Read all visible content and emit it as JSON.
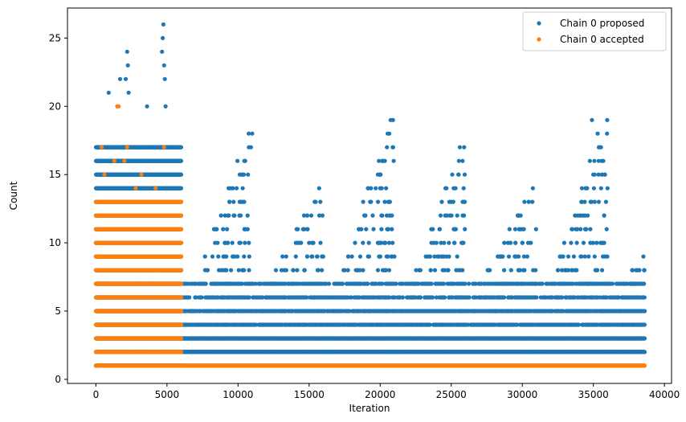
{
  "chart_data": {
    "type": "scatter",
    "title": "",
    "xlabel": "Iteration",
    "ylabel": "Count",
    "xlim": [
      -2000,
      40500
    ],
    "ylim": [
      -0.3,
      27.2
    ],
    "xticks": [
      0,
      5000,
      10000,
      15000,
      20000,
      25000,
      30000,
      35000,
      40000
    ],
    "yticks": [
      0,
      5,
      10,
      15,
      20,
      25
    ],
    "grid": false,
    "legend_position": "top-right",
    "series": [
      {
        "name": "Chain 0 proposed",
        "color": "#1f77b4",
        "segments": [
          {
            "x_range": [
              0,
              6000
            ],
            "ymin": 1,
            "ymax": 17,
            "density": "dense"
          },
          {
            "x_range": [
              6000,
              38600
            ],
            "ymin": 2,
            "ymax": 3,
            "density": "dense"
          },
          {
            "x_range": [
              6000,
              38600
            ],
            "ymin": 4,
            "ymax": 5,
            "density": "medium"
          },
          {
            "x_range": [
              6000,
              38600
            ],
            "ymin": 6,
            "ymax": 7,
            "density": "sparse"
          }
        ],
        "peaks": [
          {
            "x": [
              7000,
              11000
            ],
            "max": 18
          },
          {
            "x": [
              12000,
              16000
            ],
            "max": 14
          },
          {
            "x": [
              17000,
              21000
            ],
            "max": 19
          },
          {
            "x": [
              22000,
              26000
            ],
            "max": 17
          },
          {
            "x": [
              27000,
              31000
            ],
            "max": 14
          },
          {
            "x": [
              32000,
              36000
            ],
            "max": 19
          },
          {
            "x": [
              37000,
              38600
            ],
            "max": 9
          }
        ],
        "outliers": [
          {
            "x": 4750,
            "y": 26
          },
          {
            "x": 4700,
            "y": 25
          },
          {
            "x": 4650,
            "y": 24
          },
          {
            "x": 2200,
            "y": 24
          },
          {
            "x": 2250,
            "y": 23
          },
          {
            "x": 1700,
            "y": 22
          },
          {
            "x": 2100,
            "y": 22
          },
          {
            "x": 4800,
            "y": 23
          },
          {
            "x": 4850,
            "y": 22
          },
          {
            "x": 900,
            "y": 21
          },
          {
            "x": 2300,
            "y": 21
          },
          {
            "x": 3600,
            "y": 20
          },
          {
            "x": 4900,
            "y": 20
          },
          {
            "x": 11000,
            "y": 18
          },
          {
            "x": 20900,
            "y": 19
          },
          {
            "x": 20950,
            "y": 16
          },
          {
            "x": 25600,
            "y": 17
          },
          {
            "x": 34900,
            "y": 19
          },
          {
            "x": 35800,
            "y": 15
          },
          {
            "x": 10700,
            "y": 15
          }
        ]
      },
      {
        "name": "Chain 0 accepted",
        "color": "#ff7f0e",
        "segments": [
          {
            "x_range": [
              0,
              6000
            ],
            "ymin": 1,
            "ymax": 13,
            "density": "dense"
          },
          {
            "x_range": [
              6000,
              38600
            ],
            "ymin": 1,
            "ymax": 1,
            "density": "dense"
          }
        ],
        "outliers": [
          {
            "x": 1500,
            "y": 20
          },
          {
            "x": 1600,
            "y": 20
          },
          {
            "x": 400,
            "y": 17
          },
          {
            "x": 2200,
            "y": 17
          },
          {
            "x": 4800,
            "y": 17
          },
          {
            "x": 1300,
            "y": 16
          },
          {
            "x": 2000,
            "y": 16
          },
          {
            "x": 3200,
            "y": 15
          },
          {
            "x": 600,
            "y": 15
          },
          {
            "x": 4200,
            "y": 14
          },
          {
            "x": 2800,
            "y": 14
          },
          {
            "x": 20900,
            "y": 1
          }
        ]
      }
    ]
  }
}
